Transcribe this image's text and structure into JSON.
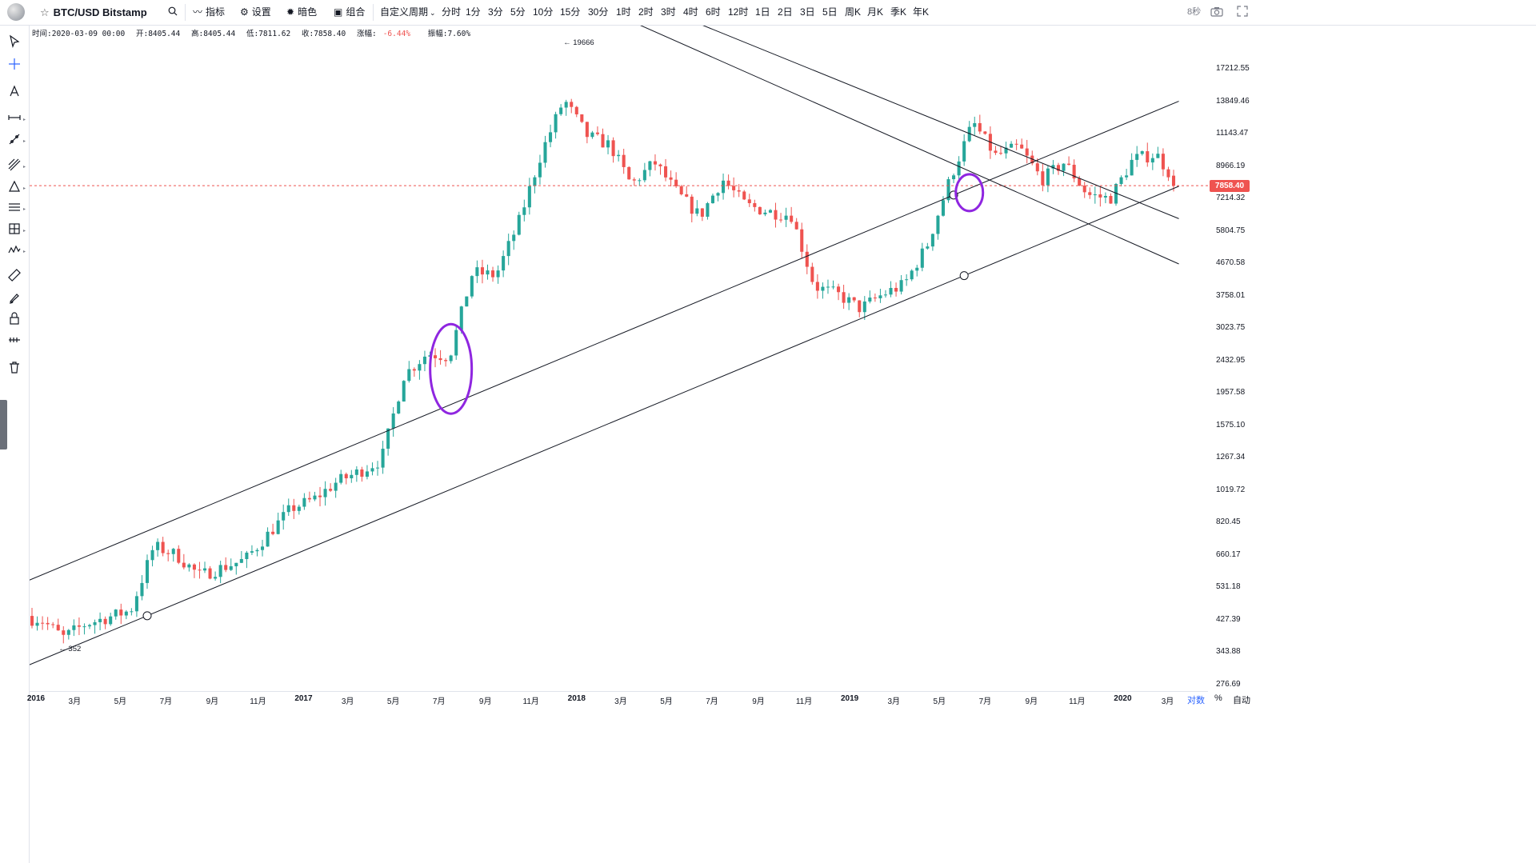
{
  "toolbar": {
    "symbol": "BTC/USD Bitstamp",
    "indicators_label": "指标",
    "settings_label": "设置",
    "theme_label": "暗色",
    "combo_label": "组合",
    "custom_period_label": "自定义周期",
    "periods": [
      "分时",
      "1分",
      "3分",
      "5分",
      "10分",
      "15分",
      "30分",
      "1时",
      "2时",
      "3时",
      "4时",
      "6时",
      "12时",
      "1日",
      "2日",
      "3日",
      "5日",
      "周K",
      "月K",
      "季K",
      "年K"
    ],
    "active_period": "周K",
    "refresh_label": "8秒"
  },
  "ohlc": {
    "time": "时间:2020-03-09 00:00",
    "open": "开:8405.44",
    "high": "高:8405.44",
    "low": "低:7811.62",
    "close": "收:7858.40",
    "change_label": "涨幅:",
    "change": "-6.44%",
    "amplitude": "振幅:7.60%"
  },
  "price_axis": {
    "ticks": [
      "17212.55",
      "13849.46",
      "11143.47",
      "8966.19",
      "7214.32",
      "5804.75",
      "4670.58",
      "3758.01",
      "3023.75",
      "2432.95",
      "1957.58",
      "1575.10",
      "1267.34",
      "1019.72",
      "820.45",
      "660.17",
      "531.18",
      "427.39",
      "343.88",
      "276.69"
    ],
    "current_price": "7858.40",
    "scale_range": [
      265,
      23000
    ]
  },
  "time_axis": {
    "ticks": [
      {
        "label": "2016",
        "year": true
      },
      {
        "label": "3月"
      },
      {
        "label": "5月"
      },
      {
        "label": "7月"
      },
      {
        "label": "9月"
      },
      {
        "label": "11月"
      },
      {
        "label": "2017",
        "year": true
      },
      {
        "label": "3月"
      },
      {
        "label": "5月"
      },
      {
        "label": "7月"
      },
      {
        "label": "9月"
      },
      {
        "label": "11月"
      },
      {
        "label": "2018",
        "year": true
      },
      {
        "label": "3月"
      },
      {
        "label": "5月"
      },
      {
        "label": "7月"
      },
      {
        "label": "9月"
      },
      {
        "label": "11月"
      },
      {
        "label": "2019",
        "year": true
      },
      {
        "label": "3月"
      },
      {
        "label": "5月"
      },
      {
        "label": "7月"
      },
      {
        "label": "9月"
      },
      {
        "label": "11月"
      },
      {
        "label": "2020",
        "year": true
      },
      {
        "label": "3月"
      }
    ]
  },
  "bottom_controls": {
    "log_label": "对数",
    "percent_label": "%",
    "auto_label": "自动"
  },
  "annotations": {
    "high_label": "19666",
    "low_label": "352"
  },
  "chart_data": {
    "type": "candlestick",
    "scale": "log",
    "interval": "weekly",
    "symbol": "BTC/USD Bitstamp",
    "first_week": "2016-01-04",
    "last_week": "2020-03-09",
    "up_color": "#26a69a",
    "down_color": "#ef5350",
    "all_time_high": 19666,
    "range_low": 352,
    "last_close": 7858.4,
    "close_anchors": [
      [
        "2016-01",
        430
      ],
      [
        "2016-02",
        380
      ],
      [
        "2016-03",
        415
      ],
      [
        "2016-05",
        455
      ],
      [
        "2016-06",
        700
      ],
      [
        "2016-07",
        660
      ],
      [
        "2016-08",
        575
      ],
      [
        "2016-10",
        640
      ],
      [
        "2016-12",
        900
      ],
      [
        "2017-01",
        960
      ],
      [
        "2017-02",
        1080
      ],
      [
        "2017-03",
        1150
      ],
      [
        "2017-04",
        1250
      ],
      [
        "2017-05",
        2200
      ],
      [
        "2017-06",
        2550
      ],
      [
        "2017-07",
        2500
      ],
      [
        "2017-08",
        4400
      ],
      [
        "2017-09",
        4300
      ],
      [
        "2017-10",
        6100
      ],
      [
        "2017-11",
        9800
      ],
      [
        "2017-12",
        14000
      ],
      [
        "2018-01",
        11000
      ],
      [
        "2018-02",
        10300
      ],
      [
        "2018-03",
        7900
      ],
      [
        "2018-04",
        9200
      ],
      [
        "2018-05",
        7500
      ],
      [
        "2018-06",
        6400
      ],
      [
        "2018-07",
        8200
      ],
      [
        "2018-08",
        6900
      ],
      [
        "2018-09",
        6600
      ],
      [
        "2018-10",
        6450
      ],
      [
        "2018-11",
        4000
      ],
      [
        "2018-12",
        3800
      ],
      [
        "2019-01",
        3450
      ],
      [
        "2019-02",
        3800
      ],
      [
        "2019-03",
        4050
      ],
      [
        "2019-04",
        5300
      ],
      [
        "2019-05",
        8200
      ],
      [
        "2019-06",
        12000
      ],
      [
        "2019-07",
        9600
      ],
      [
        "2019-08",
        10200
      ],
      [
        "2019-09",
        8200
      ],
      [
        "2019-10",
        9200
      ],
      [
        "2019-11",
        7400
      ],
      [
        "2019-12",
        7200
      ],
      [
        "2020-01",
        9400
      ],
      [
        "2020-02",
        9700
      ],
      [
        "2020-03",
        7858.4
      ]
    ],
    "trend_lines": [
      {
        "name": "upper-channel-line",
        "from": [
          "2015-12-30",
          556
        ],
        "to": [
          "2020-03-16",
          13850
        ]
      },
      {
        "name": "lower-channel-line",
        "from": [
          "2015-12-30",
          315
        ],
        "to": [
          "2020-03-16",
          7830
        ]
      },
      {
        "name": "upper-descending-line",
        "from": [
          "2018-02-26",
          29000
        ],
        "to": [
          "2020-03-16",
          6300
        ]
      },
      {
        "name": "lower-descending-line",
        "from": [
          "2018-01-15",
          27000
        ],
        "to": [
          "2020-03-16",
          4650
        ]
      }
    ]
  }
}
